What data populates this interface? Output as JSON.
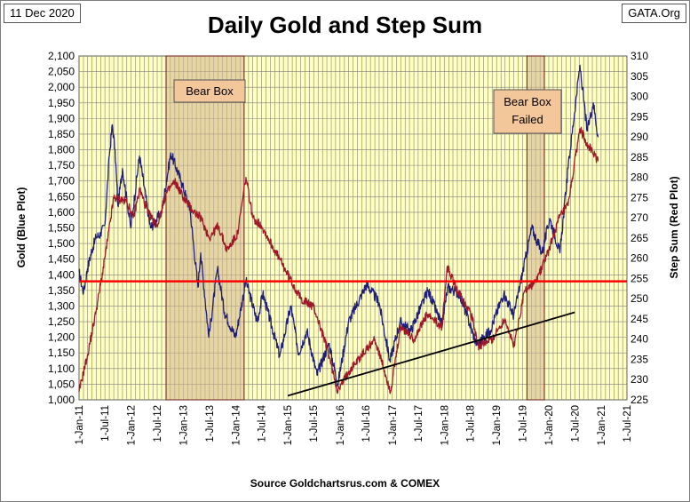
{
  "header": {
    "date_label": "11 Dec 2020",
    "site_label": "GATA.Org",
    "title": "Daily Gold and Step Sum",
    "source": "Source Goldchartsrus.com & COMEX"
  },
  "colors": {
    "plot_bg": "#ffffc0",
    "grid": "#808080",
    "gold_line": "#1f1f7a",
    "step_sum_line": "#a01828",
    "reference_line": "#ff0000",
    "trend_line": "#000000",
    "box_fill": "#d2b48c",
    "box_label_fill": "#f4c79a"
  },
  "chart_data": {
    "type": "line",
    "title": "Daily Gold and Step Sum",
    "x_ticks": [
      "1-Jan-11",
      "1-Jul-11",
      "1-Jan-12",
      "1-Jul-12",
      "1-Jan-13",
      "1-Jul-13",
      "1-Jan-14",
      "1-Jul-14",
      "1-Jan-15",
      "1-Jul-15",
      "1-Jan-16",
      "1-Jul-16",
      "1-Jan-17",
      "1-Jul-17",
      "1-Jan-18",
      "1-Jul-18",
      "1-Jan-19",
      "1-Jul-19",
      "1-Jan-20",
      "1-Jul-20",
      "1-Jan-21",
      "1-Jul-21"
    ],
    "x_range": [
      "2011-01-01",
      "2021-07-01"
    ],
    "y_left": {
      "label": "Gold  (Blue Plot)",
      "range": [
        1000,
        2100
      ],
      "ticks": [
        "1,000",
        "1,050",
        "1,100",
        "1,150",
        "1,200",
        "1,250",
        "1,300",
        "1,350",
        "1,400",
        "1,450",
        "1,500",
        "1,550",
        "1,600",
        "1,650",
        "1,700",
        "1,750",
        "1,800",
        "1,850",
        "1,900",
        "1,950",
        "2,000",
        "2,050",
        "2,100"
      ]
    },
    "y_right": {
      "label": "Step Sum   (Red Plot)",
      "range": [
        225,
        310
      ],
      "ticks": [
        "225",
        "230",
        "235",
        "240",
        "245",
        "250",
        "255",
        "260",
        "265",
        "270",
        "275",
        "280",
        "285",
        "290",
        "295",
        "300",
        "305",
        "310"
      ]
    },
    "grid": true,
    "series": [
      {
        "axis": "left",
        "points": [
          [
            "2011-01-01",
            1410
          ],
          [
            "2011-02-01",
            1340
          ],
          [
            "2011-03-01",
            1420
          ],
          [
            "2011-04-01",
            1480
          ],
          [
            "2011-05-01",
            1520
          ],
          [
            "2011-06-01",
            1530
          ],
          [
            "2011-07-01",
            1560
          ],
          [
            "2011-08-01",
            1780
          ],
          [
            "2011-08-22",
            1880
          ],
          [
            "2011-09-10",
            1800
          ],
          [
            "2011-09-30",
            1620
          ],
          [
            "2011-11-01",
            1740
          ],
          [
            "2011-12-29",
            1550
          ],
          [
            "2012-02-28",
            1780
          ],
          [
            "2012-05-15",
            1550
          ],
          [
            "2012-08-01",
            1600
          ],
          [
            "2012-10-04",
            1790
          ],
          [
            "2012-12-15",
            1700
          ],
          [
            "2013-02-15",
            1610
          ],
          [
            "2013-04-12",
            1360
          ],
          [
            "2013-05-01",
            1470
          ],
          [
            "2013-06-27",
            1200
          ],
          [
            "2013-08-27",
            1420
          ],
          [
            "2013-10-15",
            1280
          ],
          [
            "2013-12-31",
            1200
          ],
          [
            "2014-03-14",
            1380
          ],
          [
            "2014-06-01",
            1250
          ],
          [
            "2014-07-10",
            1340
          ],
          [
            "2014-11-06",
            1140
          ],
          [
            "2015-01-22",
            1300
          ],
          [
            "2015-03-17",
            1150
          ],
          [
            "2015-05-15",
            1220
          ],
          [
            "2015-07-24",
            1080
          ],
          [
            "2015-10-15",
            1180
          ],
          [
            "2015-12-17",
            1050
          ],
          [
            "2016-03-01",
            1250
          ],
          [
            "2016-07-06",
            1370
          ],
          [
            "2016-10-01",
            1310
          ],
          [
            "2016-12-15",
            1125
          ],
          [
            "2017-02-25",
            1250
          ],
          [
            "2017-05-09",
            1220
          ],
          [
            "2017-09-08",
            1350
          ],
          [
            "2017-12-12",
            1240
          ],
          [
            "2018-01-25",
            1360
          ],
          [
            "2018-04-15",
            1340
          ],
          [
            "2018-08-16",
            1175
          ],
          [
            "2018-11-15",
            1220
          ],
          [
            "2019-02-20",
            1340
          ],
          [
            "2019-05-01",
            1270
          ],
          [
            "2019-09-04",
            1550
          ],
          [
            "2019-11-15",
            1470
          ],
          [
            "2020-01-08",
            1580
          ],
          [
            "2020-03-19",
            1470
          ],
          [
            "2020-05-15",
            1740
          ],
          [
            "2020-08-06",
            2070
          ],
          [
            "2020-09-25",
            1860
          ],
          [
            "2020-11-08",
            1950
          ],
          [
            "2020-12-11",
            1840
          ]
        ]
      },
      {
        "axis": "right",
        "points": [
          [
            "2011-01-01",
            227
          ],
          [
            "2011-03-01",
            236
          ],
          [
            "2011-05-01",
            247
          ],
          [
            "2011-07-01",
            260
          ],
          [
            "2011-09-01",
            275
          ],
          [
            "2011-12-01",
            274
          ],
          [
            "2012-01-15",
            270
          ],
          [
            "2012-03-01",
            277
          ],
          [
            "2012-05-01",
            271
          ],
          [
            "2012-07-01",
            268
          ],
          [
            "2012-09-01",
            276
          ],
          [
            "2012-11-01",
            279
          ],
          [
            "2013-01-01",
            275
          ],
          [
            "2013-03-01",
            272
          ],
          [
            "2013-05-01",
            270
          ],
          [
            "2013-07-01",
            265
          ],
          [
            "2013-09-01",
            268
          ],
          [
            "2013-11-01",
            262
          ],
          [
            "2014-01-15",
            266
          ],
          [
            "2014-03-14",
            280
          ],
          [
            "2014-05-01",
            270
          ],
          [
            "2014-07-01",
            268
          ],
          [
            "2014-10-01",
            262
          ],
          [
            "2015-01-01",
            256
          ],
          [
            "2015-04-01",
            250
          ],
          [
            "2015-07-01",
            248
          ],
          [
            "2015-10-01",
            238
          ],
          [
            "2015-12-17",
            227
          ],
          [
            "2016-03-01",
            232
          ],
          [
            "2016-06-01",
            236
          ],
          [
            "2016-09-01",
            240
          ],
          [
            "2016-12-20",
            227
          ],
          [
            "2017-03-01",
            243
          ],
          [
            "2017-06-01",
            240
          ],
          [
            "2017-09-01",
            246
          ],
          [
            "2017-12-15",
            243
          ],
          [
            "2018-01-20",
            258
          ],
          [
            "2018-04-01",
            252
          ],
          [
            "2018-07-01",
            247
          ],
          [
            "2018-09-01",
            238
          ],
          [
            "2018-12-01",
            240
          ],
          [
            "2019-03-01",
            245
          ],
          [
            "2019-05-01",
            238
          ],
          [
            "2019-07-15",
            252
          ],
          [
            "2019-10-01",
            254
          ],
          [
            "2020-01-01",
            262
          ],
          [
            "2020-03-15",
            270
          ],
          [
            "2020-05-15",
            273
          ],
          [
            "2020-08-06",
            292
          ],
          [
            "2020-10-01",
            288
          ],
          [
            "2020-12-11",
            284
          ]
        ]
      }
    ],
    "reference_line": {
      "axis": "left",
      "value": 1379
    },
    "trend_line": {
      "axis": "left",
      "from": [
        "2015-01-01",
        1013
      ],
      "to": [
        "2020-07-01",
        1280
      ]
    },
    "annotations": [
      {
        "label": "Bear Box",
        "x_start": "2012-09-01",
        "x_end": "2014-03-01"
      },
      {
        "label": "Bear Box Failed",
        "x_start": "2019-08-01",
        "x_end": "2019-12-01"
      }
    ]
  }
}
